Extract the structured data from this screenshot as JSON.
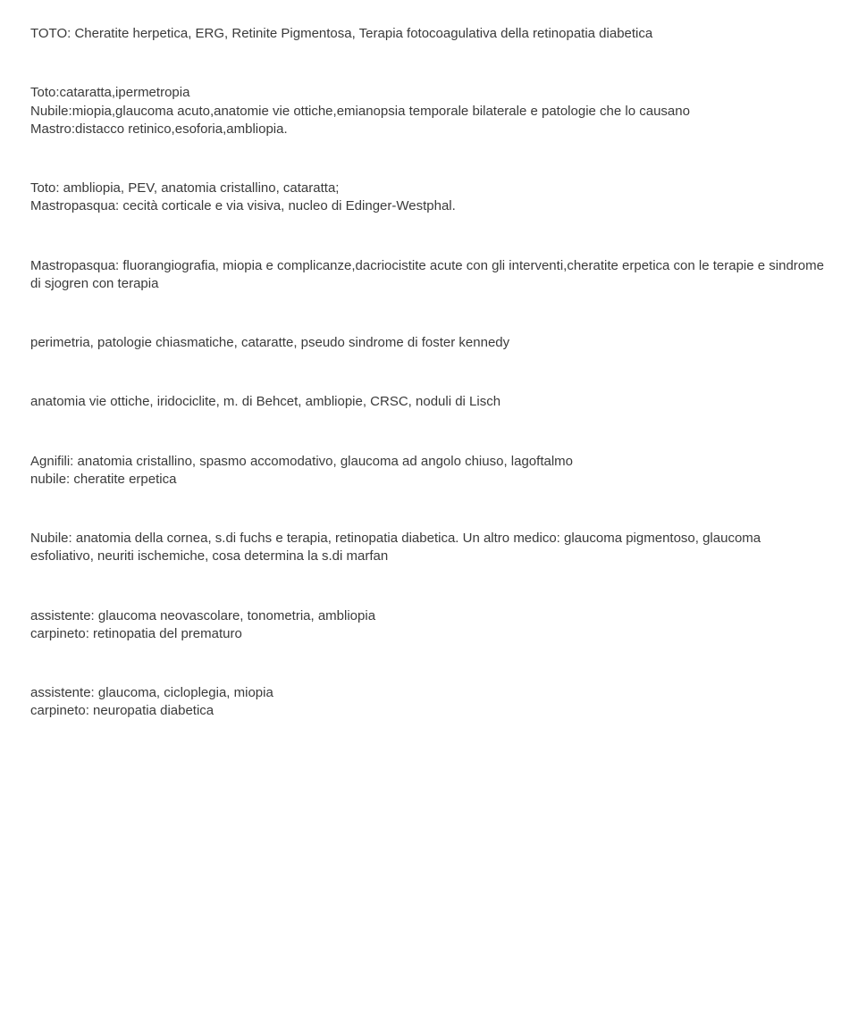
{
  "textColor": "#3a3a3a",
  "backgroundColor": "#ffffff",
  "fontFamily": "Verdana, Tahoma, Geneva, sans-serif",
  "fontSize": 15,
  "paragraphs": [
    {
      "lines": [
        "TOTO: Cheratite herpetica, ERG, Retinite Pigmentosa, Terapia fotocoagulativa della retinopatia diabetica"
      ]
    },
    {
      "lines": [
        "Toto:cataratta,ipermetropia",
        "Nubile:miopia,glaucoma acuto,anatomie vie ottiche,emianopsia temporale bilaterale e patologie che lo causano",
        "Mastro:distacco retinico,esoforia,ambliopia."
      ]
    },
    {
      "lines": [
        "Toto: ambliopia, PEV, anatomia cristallino, cataratta;",
        "Mastropasqua: cecità corticale e via visiva, nucleo di Edinger-Westphal."
      ]
    },
    {
      "lines": [
        "Mastropasqua: fluorangiografia, miopia e complicanze,dacriocistite acute con gli interventi,cheratite erpetica con le terapie e sindrome di sjogren con terapia"
      ]
    },
    {
      "lines": [
        "perimetria, patologie chiasmatiche, cataratte, pseudo sindrome di foster kennedy"
      ]
    },
    {
      "lines": [
        "anatomia vie ottiche, iridociclite, m. di Behcet, ambliopie, CRSC, noduli di Lisch"
      ]
    },
    {
      "lines": [
        "Agnifili: anatomia cristallino, spasmo accomodativo, glaucoma ad angolo chiuso, lagoftalmo",
        "nubile: cheratite erpetica"
      ]
    },
    {
      "lines": [
        "Nubile: anatomia della cornea, s.di fuchs e terapia, retinopatia diabetica. Un altro medico: glaucoma pigmentoso, glaucoma esfoliativo, neuriti ischemiche, cosa determina la s.di marfan"
      ]
    },
    {
      "lines": [
        "assistente: glaucoma neovascolare, tonometria, ambliopia",
        "carpineto: retinopatia del prematuro"
      ]
    },
    {
      "lines": [
        "assistente: glaucoma, cicloplegia, miopia",
        "carpineto: neuropatia diabetica"
      ]
    }
  ]
}
